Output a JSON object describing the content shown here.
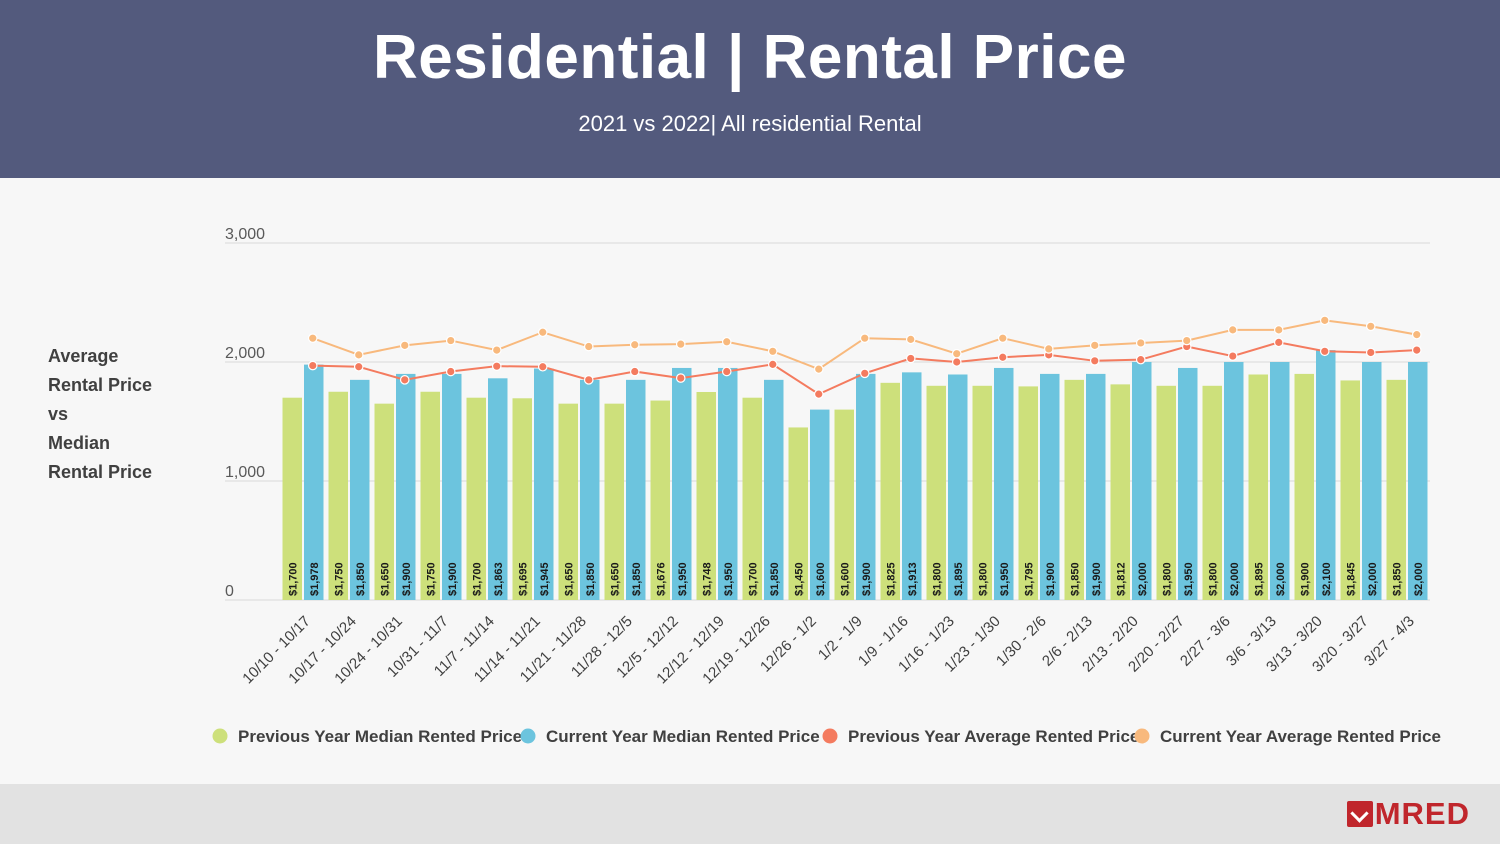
{
  "header": {
    "title": "Residential | Rental Price",
    "subtitle": "2021 vs 2022| All residential Rental"
  },
  "side_label": [
    "Average",
    "Rental Price",
    "vs",
    "Median",
    "Rental Price"
  ],
  "footer": {
    "logo_text": "MRED"
  },
  "chart_data": {
    "type": "bar",
    "title": "Residential | Rental Price",
    "subtitle": "2021 vs 2022| All residential Rental",
    "ylabel": "Average Rental Price vs Median Rental Price",
    "ylim": [
      0,
      3000
    ],
    "yticks": [
      0,
      1000,
      2000,
      3000
    ],
    "ytick_labels": [
      "0",
      "1,000",
      "2,000",
      "3,000"
    ],
    "grid": true,
    "legend_position": "bottom",
    "categories": [
      "10/10 - 10/17",
      "10/17 - 10/24",
      "10/24 - 10/31",
      "10/31 - 11/7",
      "11/7 - 11/14",
      "11/14 - 11/21",
      "11/21 - 11/28",
      "11/28 - 12/5",
      "12/5 - 12/12",
      "12/12 - 12/19",
      "12/19 - 12/26",
      "12/26 - 1/2",
      "1/2 - 1/9",
      "1/9 - 1/16",
      "1/16 - 1/23",
      "1/23 - 1/30",
      "1/30 - 2/6",
      "2/6 - 2/13",
      "2/13 - 2/20",
      "2/20 - 2/27",
      "2/27 - 3/6",
      "3/6 - 3/13",
      "3/13 - 3/20",
      "3/20 - 3/27",
      "3/27 - 4/3"
    ],
    "series": [
      {
        "name": "Previous Year Median Rented Price",
        "kind": "bar",
        "color": "#cde07b",
        "values": [
          1700,
          1750,
          1650,
          1750,
          1700,
          1695,
          1650,
          1650,
          1676,
          1748,
          1700,
          1450,
          1600,
          1825,
          1800,
          1800,
          1795,
          1850,
          1812,
          1800,
          1800,
          1895,
          1900,
          1845,
          1850
        ],
        "labels": [
          "$1,700",
          "$1,750",
          "$1,650",
          "$1,750",
          "$1,700",
          "$1,695",
          "$1,650",
          "$1,650",
          "$1,676",
          "$1,748",
          "$1,700",
          "$1,450",
          "$1,600",
          "$1,825",
          "$1,800",
          "$1,800",
          "$1,795",
          "$1,850",
          "$1,812",
          "$1,800",
          "$1,800",
          "$1,895",
          "$1,900",
          "$1,845",
          "$1,850"
        ]
      },
      {
        "name": "Current Year Median Rented Price",
        "kind": "bar",
        "color": "#6cc4de",
        "values": [
          1978,
          1850,
          1900,
          1900,
          1863,
          1945,
          1850,
          1850,
          1950,
          1950,
          1850,
          1600,
          1900,
          1913,
          1895,
          1950,
          1900,
          1900,
          2000,
          1950,
          2000,
          2000,
          2100,
          2000,
          2000
        ],
        "labels": [
          "$1,978",
          "$1,850",
          "$1,900",
          "$1,900",
          "$1,863",
          "$1,945",
          "$1,850",
          "$1,850",
          "$1,950",
          "$1,950",
          "$1,850",
          "$1,600",
          "$1,900",
          "$1,913",
          "$1,895",
          "$1,950",
          "$1,900",
          "$1,900",
          "$2,000",
          "$1,950",
          "$2,000",
          "$2,000",
          "$2,100",
          "$2,000",
          "$2,000"
        ]
      },
      {
        "name": "Previous Year Average Rented Price",
        "kind": "line",
        "color": "#f47b5f",
        "values": [
          1970,
          1960,
          1850,
          1920,
          1965,
          1960,
          1850,
          1920,
          1865,
          1920,
          1980,
          1730,
          1905,
          2030,
          2000,
          2040,
          2060,
          2010,
          2020,
          2130,
          2050,
          2165,
          2090,
          2080,
          2100
        ]
      },
      {
        "name": "Current Year Average Rented Price",
        "kind": "line",
        "color": "#f8b97d",
        "values": [
          2200,
          2060,
          2140,
          2180,
          2100,
          2250,
          2130,
          2145,
          2150,
          2170,
          2090,
          1940,
          2200,
          2190,
          2070,
          2200,
          2110,
          2140,
          2160,
          2180,
          2270,
          2270,
          2350,
          2300,
          2230
        ]
      }
    ]
  }
}
